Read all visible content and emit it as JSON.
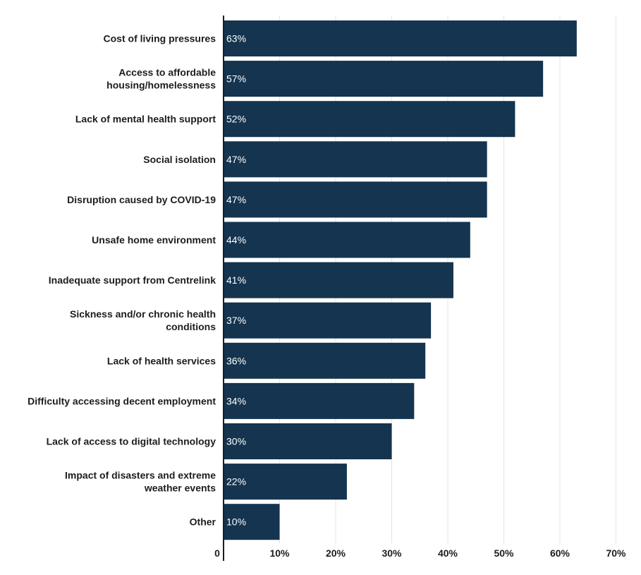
{
  "chart_data": {
    "type": "bar",
    "orientation": "horizontal",
    "title": "",
    "xlabel": "",
    "ylabel": "",
    "xlim": [
      0,
      70
    ],
    "x_ticks": [
      {
        "value": 0,
        "label": "0"
      },
      {
        "value": 10,
        "label": "10%"
      },
      {
        "value": 20,
        "label": "20%"
      },
      {
        "value": 30,
        "label": "30%"
      },
      {
        "value": 40,
        "label": "40%"
      },
      {
        "value": 50,
        "label": "50%"
      },
      {
        "value": 60,
        "label": "60%"
      },
      {
        "value": 70,
        "label": "70%"
      }
    ],
    "grid": "vertical",
    "legend": "none",
    "bar_color": "#14344f",
    "categories": [
      [
        "Cost of living pressures"
      ],
      [
        "Access to affordable",
        "housing/homelessness"
      ],
      [
        "Lack of mental health support"
      ],
      [
        "Social isolation"
      ],
      [
        "Disruption caused by COVID-19"
      ],
      [
        "Unsafe home environment"
      ],
      [
        "Inadequate support from Centrelink"
      ],
      [
        "Sickness and/or chronic health",
        "conditions"
      ],
      [
        "Lack of health services"
      ],
      [
        "Difficulty accessing decent employment"
      ],
      [
        "Lack of access to digital technology"
      ],
      [
        "Impact of disasters and extreme",
        "weather events"
      ],
      [
        "Other"
      ]
    ],
    "values": [
      63,
      57,
      52,
      47,
      47,
      44,
      41,
      37,
      36,
      34,
      30,
      22,
      10
    ],
    "data_labels": [
      "63%",
      "57%",
      "52%",
      "47%",
      "47%",
      "44%",
      "41%",
      "37%",
      "36%",
      "34%",
      "30%",
      "22%",
      "10%"
    ]
  }
}
